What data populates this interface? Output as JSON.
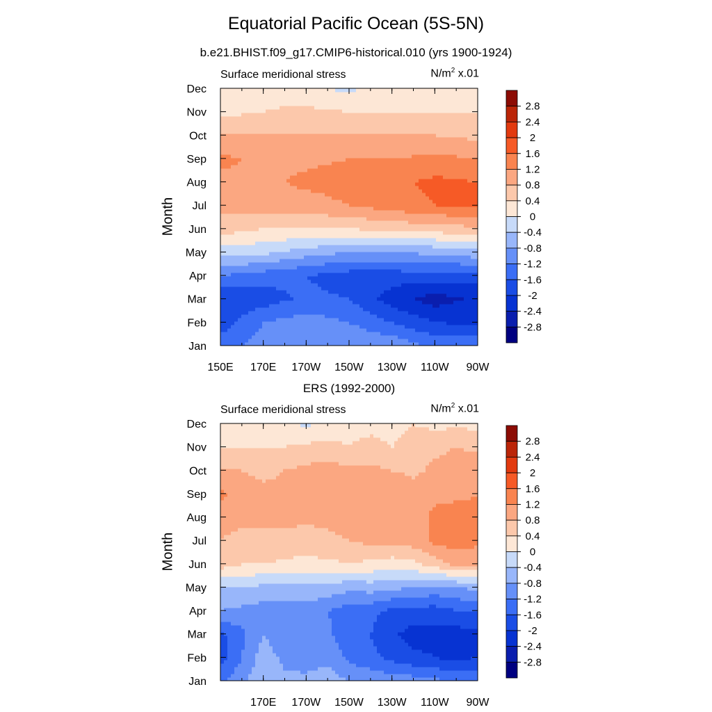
{
  "main_title": "Equatorial Pacific Ocean (5S-5N)",
  "chart_data": [
    {
      "type": "heatmap",
      "title": "b.e21.BHIST.f09_g17.CMIP6-historical.010 (yrs 1900-1924)",
      "left_string": "Surface meridional stress",
      "units_base": "N/m",
      "units_exp": "2",
      "units_scale": "x.01",
      "ylabel": "Month",
      "xlabel": "",
      "x_ticks": [
        "150E",
        "170E",
        "170W",
        "150W",
        "130W",
        "110W",
        "90W"
      ],
      "x_tick_lons": [
        150,
        170,
        190,
        210,
        230,
        250,
        270
      ],
      "xlim": [
        150,
        270
      ],
      "y_ticks": [
        "Jan",
        "Feb",
        "Mar",
        "Apr",
        "May",
        "Jun",
        "Jul",
        "Aug",
        "Sep",
        "Oct",
        "Nov",
        "Dec"
      ],
      "legend_position": "right",
      "contour_levels": [
        -2.8,
        -2.4,
        -2,
        -1.6,
        -1.2,
        -0.8,
        -0.4,
        0,
        0.4,
        0.8,
        1.2,
        1.6,
        2,
        2.4,
        2.8
      ],
      "colorbar_labels": [
        "2.8",
        "2.4",
        "2",
        "1.6",
        "1.2",
        "0.8",
        "0.4",
        "0",
        "-0.4",
        "-0.8",
        "-1.2",
        "-1.6",
        "-2",
        "-2.4",
        "-2.8"
      ],
      "colors": [
        "#000080",
        "#0a1eae",
        "#0733d2",
        "#1a4de5",
        "#3b6ef5",
        "#6690f8",
        "#98b6fa",
        "#c7daf9",
        "#fde7d6",
        "#fcc8ab",
        "#fba781",
        "#f98450",
        "#f65a26",
        "#e23a0f",
        "#bb2508",
        "#8c0c04"
      ],
      "lons": [
        150,
        170,
        190,
        210,
        230,
        250,
        270
      ],
      "months": [
        "Jan",
        "Feb",
        "Mar",
        "Apr",
        "May",
        "Jun",
        "Jul",
        "Aug",
        "Sep",
        "Oct",
        "Nov",
        "Dec"
      ],
      "values": [
        [
          -1.4,
          -1.0,
          -1.0,
          -0.8,
          -0.9,
          -1.3,
          -1.3
        ],
        [
          -1.8,
          -1.2,
          -1.0,
          -1.2,
          -1.6,
          -2.0,
          -2.1
        ],
        [
          -2.0,
          -1.8,
          -1.5,
          -1.6,
          -2.2,
          -2.6,
          -2.3
        ],
        [
          -1.2,
          -1.4,
          -1.6,
          -1.8,
          -1.8,
          -1.8,
          -1.8
        ],
        [
          -0.2,
          -0.3,
          -0.6,
          -0.8,
          -0.8,
          -0.7,
          -0.5
        ],
        [
          0.6,
          0.4,
          0.4,
          0.4,
          0.5,
          0.6,
          0.7
        ],
        [
          0.9,
          1.0,
          1.0,
          1.2,
          1.4,
          1.6,
          1.7
        ],
        [
          1.1,
          1.1,
          1.3,
          1.4,
          1.5,
          1.7,
          1.6
        ],
        [
          1.3,
          1.1,
          1.1,
          1.2,
          1.2,
          1.3,
          1.2
        ],
        [
          0.8,
          0.8,
          0.8,
          0.8,
          0.8,
          0.8,
          0.7
        ],
        [
          0.3,
          0.4,
          0.5,
          0.4,
          0.4,
          0.4,
          0.4
        ],
        [
          0.2,
          0.3,
          0.1,
          -0.1,
          0.3,
          0.4,
          0.3
        ]
      ]
    },
    {
      "type": "heatmap",
      "title": "ERS (1992-2000)",
      "left_string": "Surface meridional stress",
      "units_base": "N/m",
      "units_exp": "2",
      "units_scale": "x.01",
      "ylabel": "Month",
      "xlabel": "",
      "x_ticks": [
        "170E",
        "170W",
        "150W",
        "130W",
        "110W",
        "90W"
      ],
      "x_tick_lons": [
        170,
        190,
        210,
        230,
        250,
        270
      ],
      "xlim": [
        150,
        270
      ],
      "y_ticks": [
        "Jan",
        "Feb",
        "Mar",
        "Apr",
        "May",
        "Jun",
        "Jul",
        "Aug",
        "Sep",
        "Oct",
        "Nov",
        "Dec"
      ],
      "legend_position": "right",
      "contour_levels": [
        -2.8,
        -2.4,
        -2,
        -1.6,
        -1.2,
        -0.8,
        -0.4,
        0,
        0.4,
        0.8,
        1.2,
        1.6,
        2,
        2.4,
        2.8
      ],
      "colorbar_labels": [
        "2.8",
        "2.4",
        "2",
        "1.6",
        "1.2",
        "0.8",
        "0.4",
        "0",
        "-0.4",
        "-0.8",
        "-1.2",
        "-1.6",
        "-2",
        "-2.4",
        "-2.8"
      ],
      "colors": [
        "#000080",
        "#0a1eae",
        "#0733d2",
        "#1a4de5",
        "#3b6ef5",
        "#6690f8",
        "#98b6fa",
        "#c7daf9",
        "#fde7d6",
        "#fcc8ab",
        "#fba781",
        "#f98450",
        "#f65a26",
        "#e23a0f",
        "#bb2508",
        "#8c0c04"
      ],
      "lons": [
        150,
        160,
        170,
        180,
        190,
        200,
        210,
        220,
        230,
        240,
        250,
        260,
        270
      ],
      "months": [
        "Jan",
        "Feb",
        "Mar",
        "Apr",
        "May",
        "Jun",
        "Jul",
        "Aug",
        "Sep",
        "Oct",
        "Nov",
        "Dec"
      ],
      "values": [
        [
          -1.3,
          -0.9,
          -0.5,
          -0.7,
          -0.7,
          -0.6,
          -0.8,
          -0.9,
          -1.0,
          -1.0,
          -1.1,
          -1.3,
          -1.3
        ],
        [
          -1.8,
          -1.2,
          -0.6,
          -0.9,
          -1.0,
          -0.9,
          -1.3,
          -1.5,
          -1.7,
          -1.9,
          -2.0,
          -2.1,
          -2.0
        ],
        [
          -1.7,
          -1.3,
          -0.8,
          -1.1,
          -1.2,
          -1.1,
          -1.5,
          -1.6,
          -1.9,
          -2.2,
          -2.1,
          -2.2,
          -2.1
        ],
        [
          -0.8,
          -0.9,
          -1.0,
          -1.0,
          -1.0,
          -1.2,
          -1.4,
          -1.5,
          -1.7,
          -1.7,
          -1.8,
          -1.6,
          -1.6
        ],
        [
          -0.4,
          -0.4,
          -0.5,
          -0.5,
          -0.5,
          -0.5,
          -0.7,
          -0.6,
          -0.7,
          -0.8,
          -0.9,
          -0.8,
          -0.7
        ],
        [
          0.6,
          0.4,
          0.4,
          0.3,
          0.3,
          0.3,
          0.4,
          0.3,
          0.2,
          0.3,
          0.6,
          0.9,
          0.9
        ],
        [
          0.8,
          0.7,
          0.8,
          0.7,
          0.6,
          0.7,
          0.8,
          0.9,
          0.9,
          1.0,
          1.3,
          1.4,
          1.3
        ],
        [
          0.9,
          0.9,
          0.8,
          0.9,
          0.9,
          0.9,
          1.0,
          1.0,
          1.1,
          1.0,
          1.3,
          1.4,
          1.3
        ],
        [
          1.3,
          1.0,
          0.9,
          0.9,
          1.0,
          1.0,
          1.1,
          1.1,
          1.2,
          1.0,
          1.1,
          1.1,
          1.2
        ],
        [
          0.8,
          0.8,
          0.7,
          0.8,
          0.9,
          1.0,
          0.9,
          0.9,
          0.8,
          0.7,
          0.9,
          1.0,
          1.1
        ],
        [
          0.4,
          0.4,
          0.4,
          0.4,
          0.5,
          0.5,
          0.4,
          0.5,
          0.4,
          0.5,
          0.7,
          0.8,
          0.7
        ],
        [
          0.1,
          0.1,
          0.2,
          0.2,
          -0.1,
          0.2,
          0.3,
          0.3,
          0.3,
          0.4,
          0.3,
          0.3,
          0.3
        ]
      ]
    }
  ]
}
